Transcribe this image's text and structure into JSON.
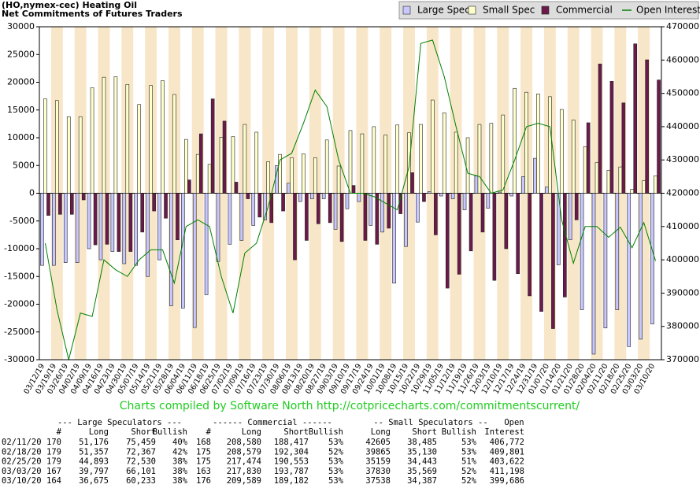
{
  "chart_data": {
    "type": "bar",
    "title": "(HO,nymex-cec) Heating Oil",
    "subtitle": "Net Commitments of Futures Traders",
    "categories": [
      "03/12/19",
      "03/19/19",
      "03/26/19",
      "04/02/19",
      "04/09/19",
      "04/16/19",
      "04/23/19",
      "04/30/19",
      "05/07/19",
      "05/14/19",
      "05/21/19",
      "05/28/19",
      "06/04/19",
      "06/11/19",
      "06/18/19",
      "06/25/19",
      "07/02/19",
      "07/09/19",
      "07/16/19",
      "07/23/19",
      "07/30/19",
      "08/06/19",
      "08/13/19",
      "08/20/19",
      "08/27/19",
      "09/03/19",
      "09/10/19",
      "09/17/19",
      "09/24/19",
      "10/01/19",
      "10/08/19",
      "10/15/19",
      "10/22/19",
      "10/29/19",
      "11/05/19",
      "11/12/19",
      "11/19/19",
      "11/26/19",
      "12/03/19",
      "12/10/19",
      "12/17/19",
      "12/24/19",
      "12/31/19",
      "01/07/20",
      "01/14/20",
      "01/21/20",
      "01/28/20",
      "02/04/20",
      "02/11/20",
      "02/18/20",
      "02/25/20",
      "03/03/20",
      "03/10/20"
    ],
    "series": [
      {
        "name": "Large Spec",
        "color": "#c8c8ff",
        "values": [
          -13000,
          -13000,
          -12500,
          -12500,
          -10000,
          -12000,
          -10500,
          -12700,
          -13000,
          -15000,
          -12000,
          -20300,
          -20700,
          -24200,
          -18300,
          -12300,
          -9200,
          -8500,
          -5800,
          -4800,
          5000,
          1800,
          -1500,
          -1000,
          -1000,
          -6500,
          -2800,
          -1500,
          -5800,
          -7000,
          -16200,
          -9600,
          -5200,
          300,
          -500,
          -1000,
          -3000,
          3100,
          -2700,
          200,
          -500,
          3000,
          6300,
          1100,
          -12900,
          -8400,
          -21000,
          -29000,
          -24283,
          -21010,
          -27637,
          -26304,
          -23558
        ]
      },
      {
        "name": "Small Spec",
        "color": "#ffffcc",
        "values": [
          17000,
          16700,
          13800,
          13800,
          19000,
          20900,
          21000,
          19600,
          16000,
          19400,
          20300,
          17800,
          9700,
          7000,
          5200,
          10100,
          10200,
          12400,
          11000,
          5700,
          7000,
          6400,
          7100,
          6400,
          9600,
          4900,
          11300,
          10700,
          12000,
          10500,
          12300,
          10900,
          12400,
          16800,
          14500,
          11000,
          10000,
          12400,
          12600,
          14100,
          18900,
          18200,
          17900,
          17400,
          15100,
          13200,
          8400,
          5500,
          4120,
          4735,
          716,
          2261,
          3151
        ]
      },
      {
        "name": "Commercial",
        "color": "#6b1a4a",
        "values": [
          -4000,
          -3800,
          -3800,
          -1200,
          -9300,
          -9200,
          -10500,
          -10500,
          -7000,
          -3200,
          -4500,
          -8400,
          2400,
          10700,
          17000,
          13000,
          2000,
          -1000,
          -4300,
          -5300,
          -3200,
          -12000,
          -8500,
          -5500,
          -5300,
          -8700,
          1400,
          -8500,
          -9200,
          -6300,
          -3700,
          3700,
          -1500,
          -7500,
          -17100,
          -14600,
          -10400,
          -7000,
          -15700,
          -10000,
          -14500,
          -18500,
          -21300,
          -24400,
          -18700,
          -4800,
          12700,
          23300,
          20163,
          16275,
          26921,
          24043,
          20407
        ]
      },
      {
        "name": "Open Interest",
        "color": "#008000",
        "type": "line",
        "axis": "y2",
        "values": [
          405000,
          385000,
          370000,
          384000,
          383000,
          400000,
          397000,
          395000,
          400000,
          403000,
          403000,
          393000,
          410000,
          412000,
          410000,
          395000,
          384000,
          402000,
          405000,
          416000,
          430000,
          432000,
          441000,
          451000,
          446000,
          430000,
          420000,
          420000,
          419000,
          417000,
          415000,
          428000,
          465000,
          466000,
          455000,
          440000,
          426000,
          425000,
          420000,
          421000,
          430000,
          440000,
          441000,
          440000,
          412000,
          399000,
          410000,
          410000,
          406772,
          409801,
          403622,
          411198,
          399686
        ]
      }
    ],
    "ylim": [
      -30000,
      30000
    ],
    "yticks": [
      -30000,
      -25000,
      -20000,
      -15000,
      -10000,
      -5000,
      0,
      5000,
      10000,
      15000,
      20000,
      25000,
      30000
    ],
    "y2lim": [
      370000,
      470000
    ],
    "y2ticks": [
      370000,
      380000,
      390000,
      400000,
      410000,
      420000,
      430000,
      440000,
      450000,
      460000,
      470000
    ],
    "legend": "top-right",
    "stripe_color": "#f8e6c8",
    "footer": "Charts compiled by Software North  http://cotpricecharts.com/commitmentscurrent/",
    "footer_color": "#22cc22"
  },
  "table": {
    "group_headers": [
      "--- Large Speculators ---",
      "------ Commercial ------",
      "-- Small Speculators --",
      "Open"
    ],
    "columns": [
      "#",
      "Long",
      "Short",
      "Bullish",
      "#",
      "Long",
      "Short",
      "Bullish",
      "Long",
      "Short",
      "Bullish",
      "Interest"
    ],
    "rows": [
      [
        "02/11/20",
        "170",
        "51,176",
        "75,459",
        "40%",
        "168",
        "208,580",
        "188,417",
        "53%",
        "42605",
        "38,485",
        "53%",
        "406,772"
      ],
      [
        "02/18/20",
        "179",
        "51,357",
        "72,367",
        "42%",
        "175",
        "208,579",
        "192,304",
        "52%",
        "39865",
        "35,130",
        "53%",
        "409,801"
      ],
      [
        "02/25/20",
        "179",
        "44,893",
        "72,530",
        "38%",
        "175",
        "217,474",
        "190,553",
        "53%",
        "35159",
        "34,443",
        "51%",
        "403,622"
      ],
      [
        "03/03/20",
        "167",
        "39,797",
        "66,101",
        "38%",
        "163",
        "217,830",
        "193,787",
        "53%",
        "37830",
        "35,569",
        "52%",
        "411,198"
      ],
      [
        "03/10/20",
        "164",
        "36,675",
        "60,233",
        "38%",
        "176",
        "209,589",
        "189,182",
        "53%",
        "37538",
        "34,387",
        "52%",
        "399,686"
      ]
    ]
  }
}
